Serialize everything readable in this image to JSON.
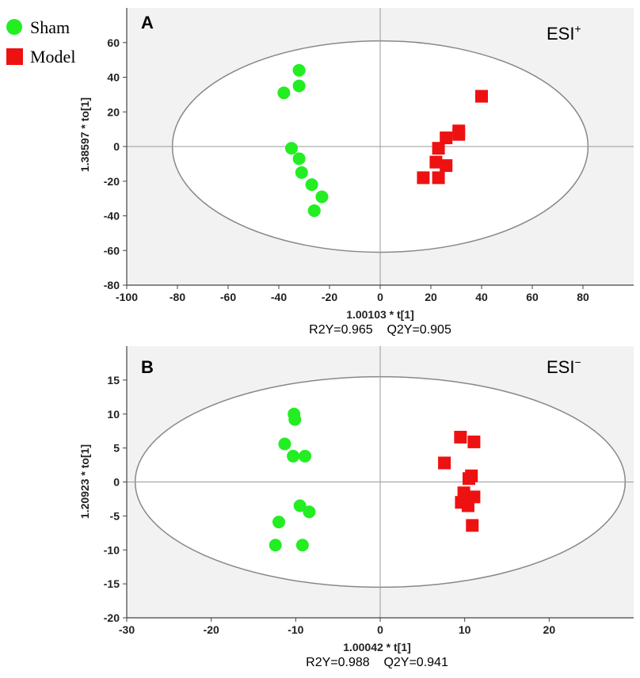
{
  "legend": {
    "items": [
      {
        "label": "Sham",
        "color": "#22ee22",
        "shape": "circle"
      },
      {
        "label": "Model",
        "color": "#ee1111",
        "shape": "square"
      }
    ]
  },
  "chart_data": [
    {
      "type": "scatter",
      "panel_letter": "A",
      "mode_label": "ESI",
      "mode_sup": "+",
      "xlabel": "1.00103 * t[1]",
      "ylabel": "1.38597 * to[1]",
      "stats_text": "R2Y=0.965    Q2Y=0.905",
      "xlim": [
        -100,
        100
      ],
      "ylim": [
        -80,
        80
      ],
      "xticks": [
        -100,
        -80,
        -60,
        -40,
        -20,
        0,
        20,
        40,
        60,
        80
      ],
      "yticks": [
        -80,
        -60,
        -40,
        -20,
        0,
        20,
        40,
        60
      ],
      "ellipse": {
        "cx": 0,
        "cy": 0,
        "rx": 82,
        "ry": 61
      },
      "series": [
        {
          "name": "Sham",
          "points": [
            [
              -32,
              44
            ],
            [
              -32,
              35
            ],
            [
              -38,
              31
            ],
            [
              -35,
              -1
            ],
            [
              -32,
              -7
            ],
            [
              -31,
              -15
            ],
            [
              -27,
              -22
            ],
            [
              -23,
              -29
            ],
            [
              -26,
              -37
            ]
          ]
        },
        {
          "name": "Model",
          "points": [
            [
              40,
              29
            ],
            [
              31,
              9
            ],
            [
              31,
              7
            ],
            [
              26,
              5
            ],
            [
              23,
              -1
            ],
            [
              22,
              -9
            ],
            [
              26,
              -11
            ],
            [
              17,
              -18
            ],
            [
              23,
              -18
            ]
          ]
        }
      ]
    },
    {
      "type": "scatter",
      "panel_letter": "B",
      "mode_label": "ESI",
      "mode_sup": "−",
      "xlabel": "1.00042 * t[1]",
      "ylabel": "1.20923 * to[1]",
      "stats_text": "R2Y=0.988    Q2Y=0.941",
      "xlim": [
        -30,
        30
      ],
      "ylim": [
        -20,
        20
      ],
      "xticks": [
        -30,
        -20,
        -10,
        0,
        10,
        20
      ],
      "yticks": [
        -20,
        -15,
        -10,
        -5,
        0,
        5,
        10,
        15
      ],
      "ellipse": {
        "cx": 0,
        "cy": 0,
        "rx": 29,
        "ry": 15.5
      },
      "series": [
        {
          "name": "Sham",
          "points": [
            [
              -10.2,
              10
            ],
            [
              -10.1,
              9.2
            ],
            [
              -11.3,
              5.6
            ],
            [
              -10.3,
              3.8
            ],
            [
              -8.9,
              3.8
            ],
            [
              -9.5,
              -3.5
            ],
            [
              -8.4,
              -4.4
            ],
            [
              -12,
              -5.9
            ],
            [
              -12.4,
              -9.3
            ],
            [
              -9.2,
              -9.3
            ]
          ]
        },
        {
          "name": "Model",
          "points": [
            [
              9.5,
              6.6
            ],
            [
              11.1,
              5.9
            ],
            [
              7.6,
              2.8
            ],
            [
              10.8,
              0.9
            ],
            [
              10.5,
              0.5
            ],
            [
              9.9,
              -1.6
            ],
            [
              11.1,
              -2.2
            ],
            [
              10.2,
              -2.6
            ],
            [
              9.6,
              -3.0
            ],
            [
              10.4,
              -3.5
            ],
            [
              10.9,
              -6.4
            ]
          ]
        }
      ]
    }
  ]
}
